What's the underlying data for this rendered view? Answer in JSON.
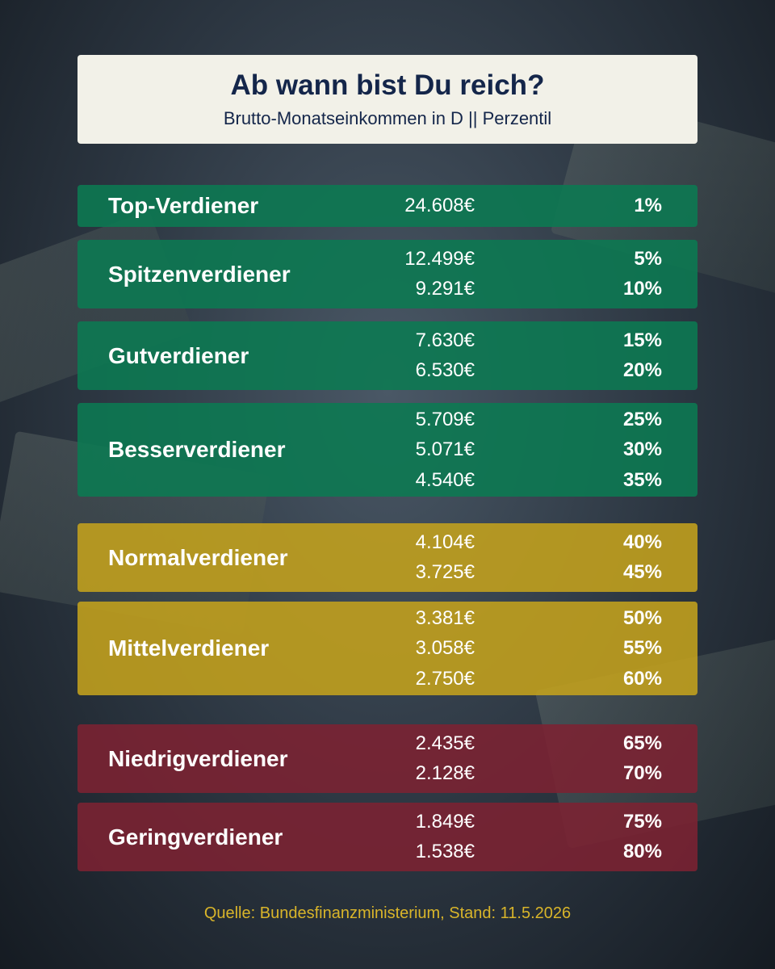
{
  "header": {
    "title": "Ab wann bist Du reich?",
    "subtitle": "Brutto-Monatseinkommen in D || Perzentil"
  },
  "groups": [
    {
      "label": "Top-Verdiener",
      "color": "#0b7a52",
      "rows": [
        [
          "24.608€",
          "1%"
        ]
      ]
    },
    {
      "label": "Spitzenverdiener",
      "color": "#0b7a52",
      "rows": [
        [
          "12.499€",
          "5%"
        ],
        [
          "9.291€",
          "10%"
        ]
      ]
    },
    {
      "label": "Gutverdiener",
      "color": "#0b7a52",
      "rows": [
        [
          "7.630€",
          "15%"
        ],
        [
          "6.530€",
          "20%"
        ]
      ]
    },
    {
      "label": "Besserverdiener",
      "color": "#0b7a52",
      "rows": [
        [
          "5.709€",
          "25%"
        ],
        [
          "5.071€",
          "30%"
        ],
        [
          "4.540€",
          "35%"
        ]
      ]
    },
    {
      "label": "Normalverdiener",
      "color": "#c4a21c",
      "rows": [
        [
          "4.104€",
          "40%"
        ],
        [
          "3.725€",
          "45%"
        ]
      ]
    },
    {
      "label": "Mittelverdiener",
      "color": "#c4a21c",
      "rows": [
        [
          "3.381€",
          "50%"
        ],
        [
          "3.058€",
          "55%"
        ],
        [
          "2.750€",
          "60%"
        ]
      ]
    },
    {
      "label": "Niedrigverdiener",
      "color": "#7c2232",
      "rows": [
        [
          "2.435€",
          "65%"
        ],
        [
          "2.128€",
          "70%"
        ]
      ]
    },
    {
      "label": "Geringverdiener",
      "color": "#7c2232",
      "rows": [
        [
          "1.849€",
          "75%"
        ],
        [
          "1.538€",
          "80%"
        ]
      ]
    }
  ],
  "footer": {
    "source": "Quelle: Bundesfinanzministerium, Stand: 11.5.2026"
  }
}
